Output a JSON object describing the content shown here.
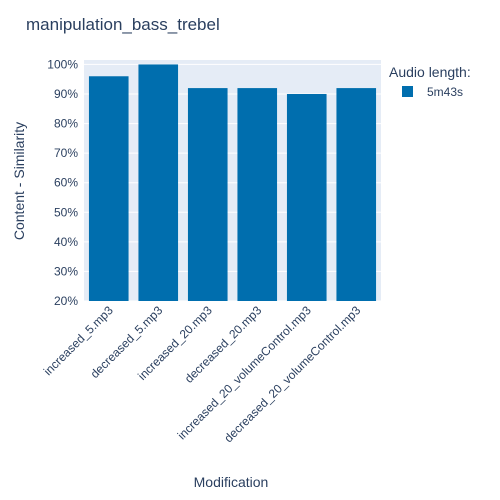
{
  "chart_data": {
    "type": "bar",
    "title": "manipulation_bass_trebel",
    "xlabel": "Modification",
    "ylabel": "Content - Similarity",
    "categories": [
      "increased_5.mp3",
      "decreased_5.mp3",
      "increased_20.mp3",
      "decreased_20.mp3",
      "increased_20_volumeControl.mp3",
      "decreased_20_volumeControl.mp3"
    ],
    "series": [
      {
        "name": "5m43s",
        "values": [
          96,
          100,
          92,
          92,
          90,
          92
        ]
      }
    ],
    "ylim": [
      20,
      101.5
    ],
    "yticks": [
      "20%",
      "30%",
      "40%",
      "50%",
      "60%",
      "70%",
      "80%",
      "90%",
      "100%"
    ],
    "ytick_values": [
      20,
      30,
      40,
      50,
      60,
      70,
      80,
      90,
      100
    ],
    "legend": {
      "title": "Audio length:",
      "position": "top-right"
    },
    "grid": true,
    "colors": {
      "bar": "#006eae",
      "plot_bg": "#e5ecf6",
      "grid": "#ffffff",
      "text": "#2a3f5f"
    }
  }
}
